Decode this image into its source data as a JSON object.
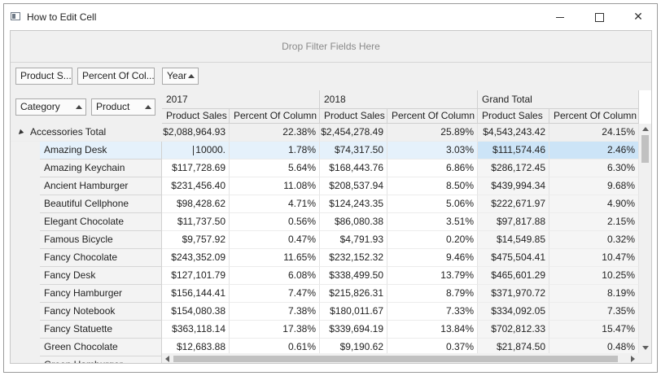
{
  "window": {
    "title": "How to Edit Cell",
    "minimize_glyph": "minimize-icon",
    "maximize_glyph": "maximize-icon",
    "close_glyph": "✕"
  },
  "pivot": {
    "filter_placeholder": "Drop Filter Fields Here",
    "data_fields": [
      "Product S...",
      "Percent Of Col..."
    ],
    "column_fields": [
      "Year"
    ],
    "row_fields": [
      "Category",
      "Product"
    ],
    "years": [
      "2017",
      "2018",
      "Grand Total"
    ],
    "measures": [
      "Product Sales",
      "Percent Of Column",
      "Product Sales",
      "Percent Of Column",
      "Product Sales",
      "Percent Of Column"
    ],
    "total_row": {
      "label": "Accessories Total",
      "values": [
        "$2,088,964.93",
        "22.38%",
        "$2,454,278.49",
        "25.89%",
        "$4,543,243.42",
        "24.15%"
      ]
    },
    "editing_value": "10000.",
    "rows": [
      {
        "label": "Amazing Desk",
        "values": [
          "10000.",
          "1.78%",
          "$74,317.50",
          "3.03%",
          "$111,574.46",
          "2.46%"
        ]
      },
      {
        "label": "Amazing Keychain",
        "values": [
          "$117,728.69",
          "5.64%",
          "$168,443.76",
          "6.86%",
          "$286,172.45",
          "6.30%"
        ]
      },
      {
        "label": "Ancient Hamburger",
        "values": [
          "$231,456.40",
          "11.08%",
          "$208,537.94",
          "8.50%",
          "$439,994.34",
          "9.68%"
        ]
      },
      {
        "label": "Beautiful Cellphone",
        "values": [
          "$98,428.62",
          "4.71%",
          "$124,243.35",
          "5.06%",
          "$222,671.97",
          "4.90%"
        ]
      },
      {
        "label": "Elegant Chocolate",
        "values": [
          "$11,737.50",
          "0.56%",
          "$86,080.38",
          "3.51%",
          "$97,817.88",
          "2.15%"
        ]
      },
      {
        "label": "Famous Bicycle",
        "values": [
          "$9,757.92",
          "0.47%",
          "$4,791.93",
          "0.20%",
          "$14,549.85",
          "0.32%"
        ]
      },
      {
        "label": "Fancy Chocolate",
        "values": [
          "$243,352.09",
          "11.65%",
          "$232,152.32",
          "9.46%",
          "$475,504.41",
          "10.47%"
        ]
      },
      {
        "label": "Fancy Desk",
        "values": [
          "$127,101.79",
          "6.08%",
          "$338,499.50",
          "13.79%",
          "$465,601.29",
          "10.25%"
        ]
      },
      {
        "label": "Fancy Hamburger",
        "values": [
          "$156,144.41",
          "7.47%",
          "$215,826.31",
          "8.79%",
          "$371,970.72",
          "8.19%"
        ]
      },
      {
        "label": "Fancy Notebook",
        "values": [
          "$154,080.38",
          "7.38%",
          "$180,011.67",
          "7.33%",
          "$334,092.05",
          "7.35%"
        ]
      },
      {
        "label": "Fancy Statuette",
        "values": [
          "$363,118.14",
          "17.38%",
          "$339,694.19",
          "13.84%",
          "$702,812.33",
          "15.47%"
        ]
      },
      {
        "label": "Green Chocolate",
        "values": [
          "$12,683.88",
          "0.61%",
          "$9,190.62",
          "0.37%",
          "$21,874.50",
          "0.48%"
        ]
      },
      {
        "label": "Green Hamburger",
        "values": [
          "",
          "",
          "",
          "",
          "",
          ""
        ]
      }
    ]
  }
}
